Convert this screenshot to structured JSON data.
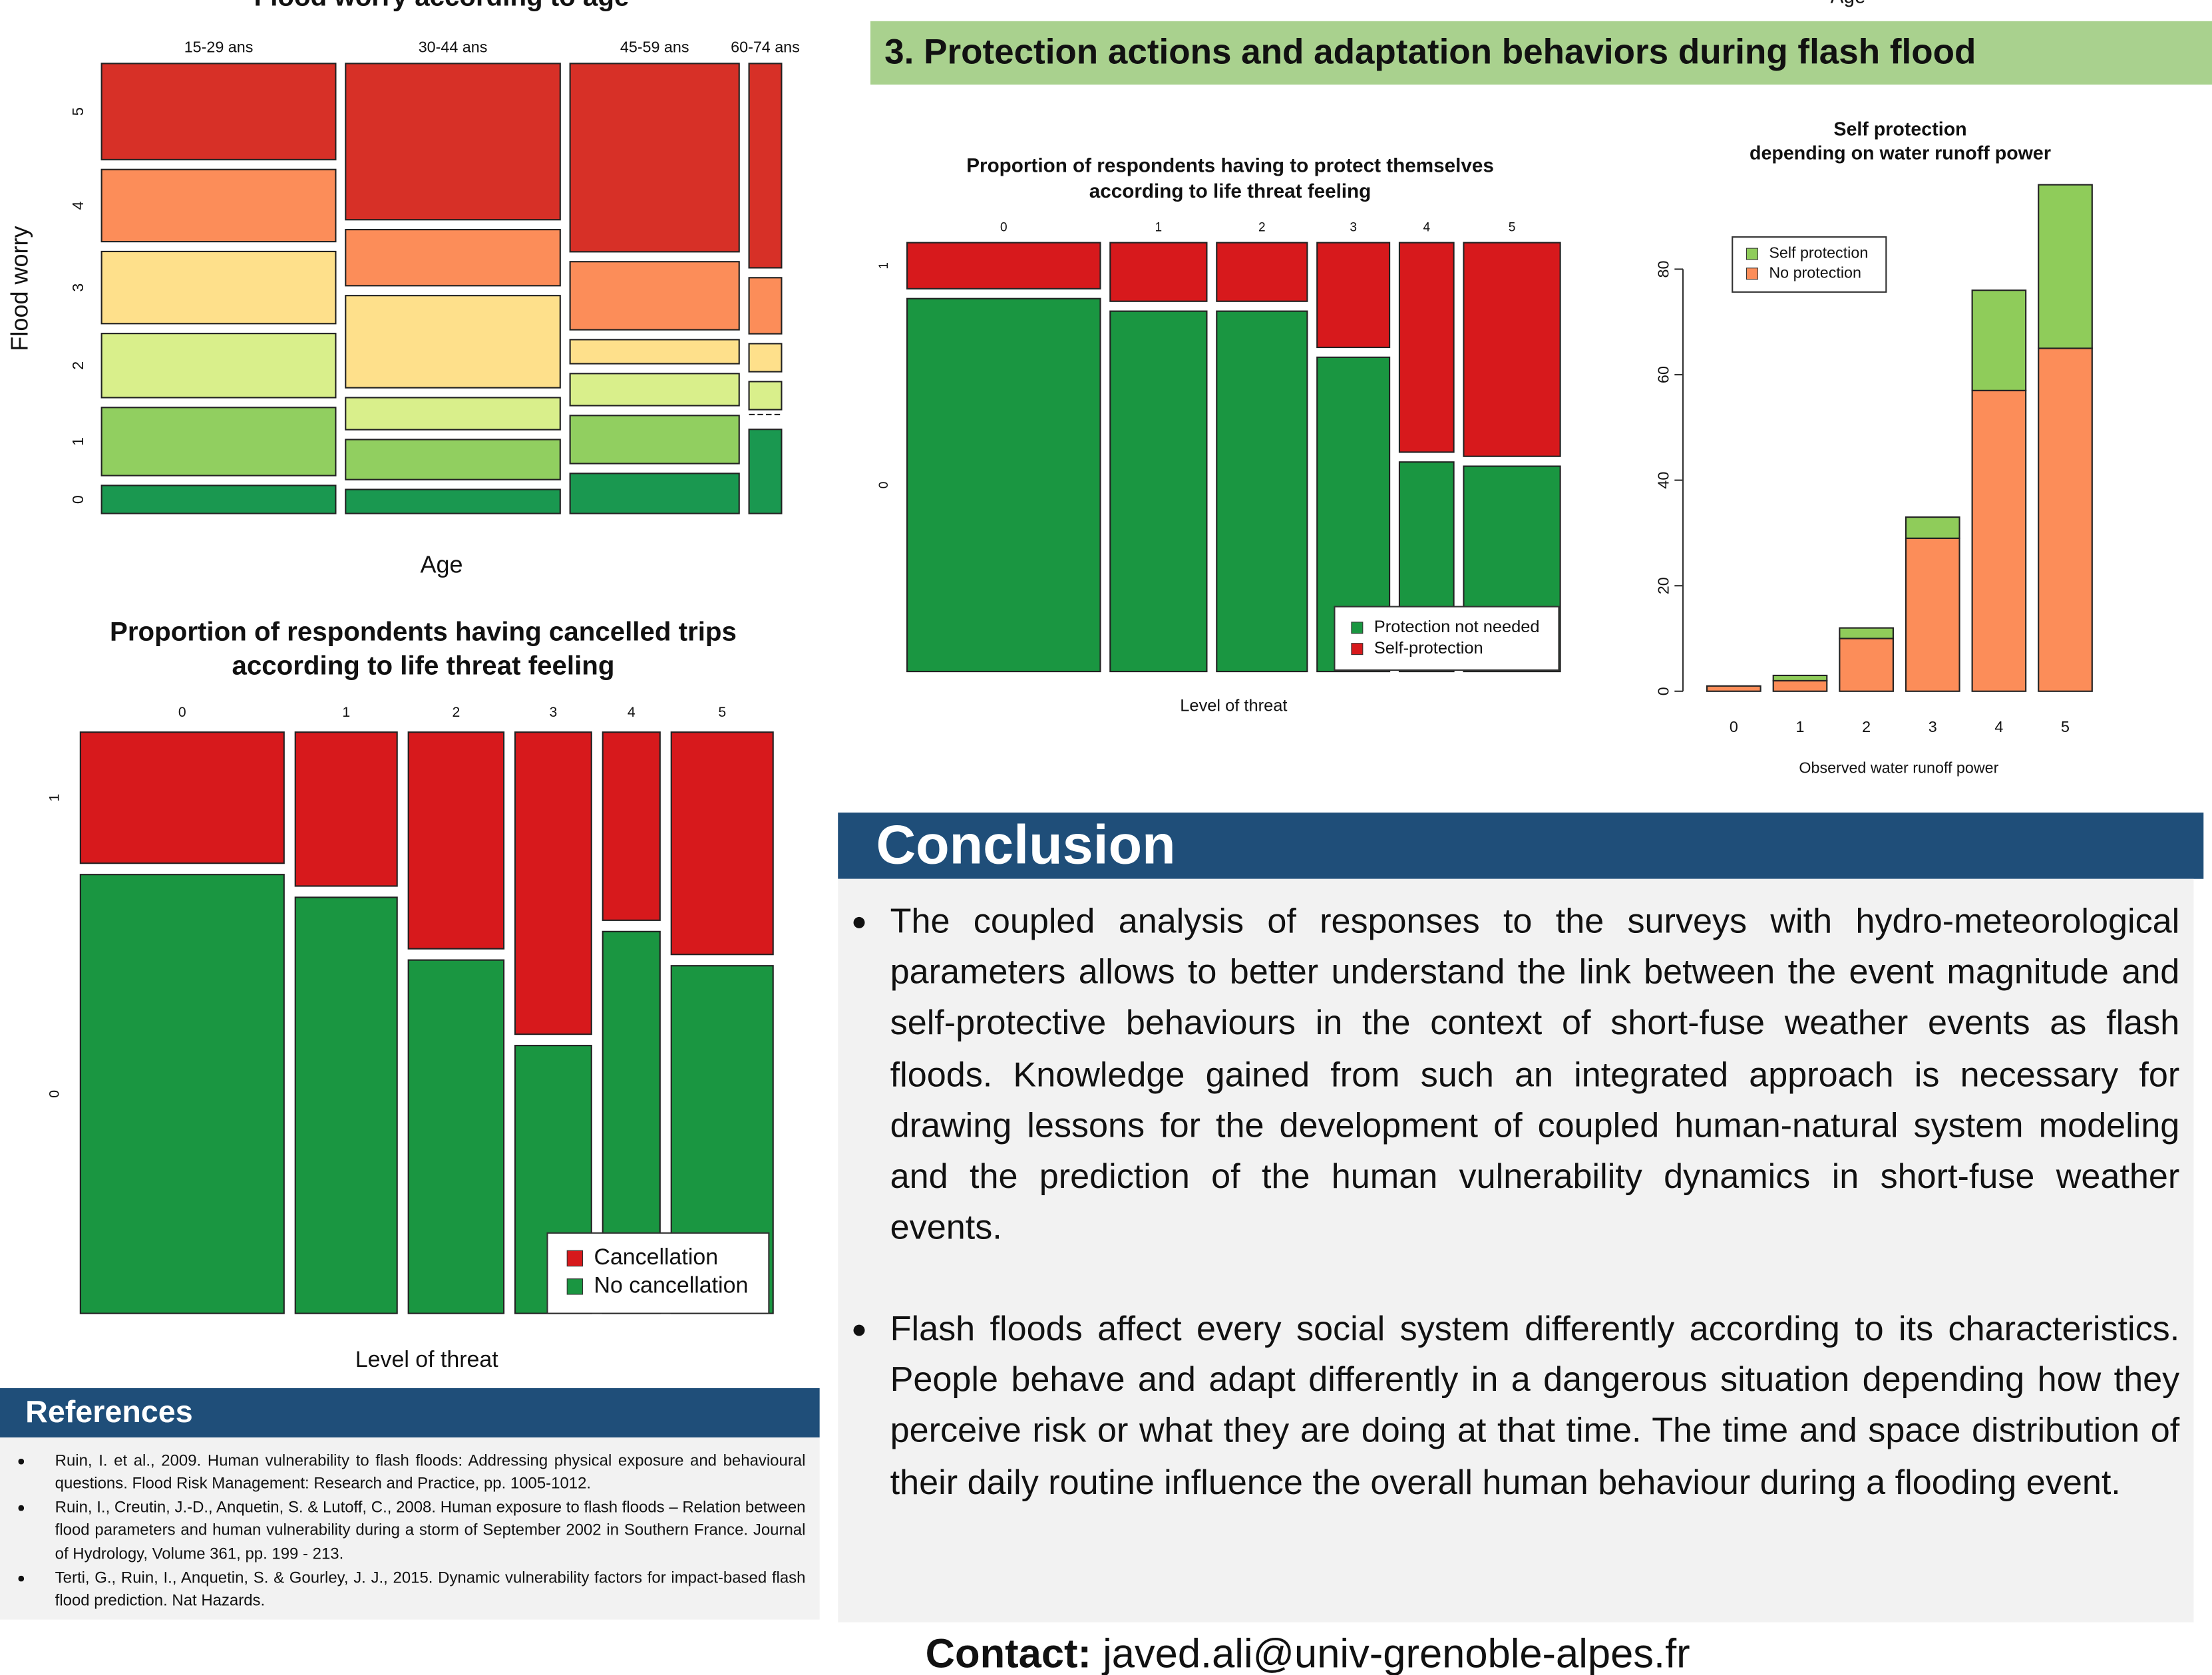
{
  "top_cut_label": "Age",
  "section_title": "3. Protection actions and adaptation behaviors during flash flood",
  "flood_worry_chart": {
    "type": "mosaic",
    "title": "Flood worry according to age",
    "x_label": "Age",
    "y_label": "Flood worry",
    "categories": [
      "15-29 ans",
      "30-44 ans",
      "45-59 ans",
      "60-74 ans"
    ],
    "widths": [
      0.36,
      0.33,
      0.26,
      0.05
    ],
    "stack": "bottom-up",
    "legend": false,
    "series": [
      {
        "name": "0",
        "color": "#1a9850",
        "values": [
          0.07,
          0.06,
          0.1,
          0.21
        ]
      },
      {
        "name": "1",
        "color": "#91cf60",
        "values": [
          0.17,
          0.1,
          0.12,
          0
        ]
      },
      {
        "name": "2",
        "color": "#d9ef8b",
        "values": [
          0.16,
          0.08,
          0.08,
          0.07
        ]
      },
      {
        "name": "3",
        "color": "#fee08b",
        "values": [
          0.18,
          0.23,
          0.06,
          0.07
        ]
      },
      {
        "name": "4",
        "color": "#fc8d59",
        "values": [
          0.18,
          0.14,
          0.17,
          0.14
        ]
      },
      {
        "name": "5",
        "color": "#d73027",
        "values": [
          0.24,
          0.39,
          0.47,
          0.51
        ]
      }
    ]
  },
  "cancel_chart": {
    "type": "mosaic",
    "title_lines": [
      "Proportion of respondents having cancelled trips",
      "according to life threat feeling"
    ],
    "x_label": "Level of threat",
    "categories": [
      "0",
      "1",
      "2",
      "3",
      "4",
      "5"
    ],
    "widths": [
      0.32,
      0.16,
      0.15,
      0.12,
      0.09,
      0.16
    ],
    "stack": "top-down",
    "legend": "bottom-right",
    "levels": [
      "1",
      "0"
    ],
    "series": [
      {
        "name": "Cancellation",
        "color": "#d7191c",
        "values": [
          0.23,
          0.27,
          0.38,
          0.53,
          0.33,
          0.39
        ]
      },
      {
        "name": "No cancellation",
        "color": "#1a9641",
        "values": [
          0.77,
          0.73,
          0.62,
          0.47,
          0.67,
          0.61
        ]
      }
    ]
  },
  "protection_chart": {
    "type": "mosaic",
    "title_lines": [
      "Proportion of respondents having to protect themselves",
      "according to life threat feeling"
    ],
    "x_label": "Level of threat",
    "categories": [
      "0",
      "1",
      "2",
      "3",
      "4",
      "5"
    ],
    "widths": [
      0.32,
      0.16,
      0.15,
      0.12,
      0.09,
      0.16
    ],
    "stack": "bottom-up",
    "legend": "bottom-right",
    "levels": [
      "0",
      "1"
    ],
    "series": [
      {
        "name": "Protection not needed",
        "color": "#1a9641",
        "values": [
          0.89,
          0.86,
          0.86,
          0.75,
          0.5,
          0.49
        ]
      },
      {
        "name": "Self-protection",
        "color": "#d7191c",
        "values": [
          0.11,
          0.14,
          0.14,
          0.25,
          0.5,
          0.51
        ]
      }
    ]
  },
  "runoff_chart": {
    "type": "bar",
    "stacked": true,
    "title_lines": [
      "Self protection",
      "depending on water runoff power"
    ],
    "x_label": "Observed water runoff power",
    "categories": [
      "0",
      "1",
      "2",
      "3",
      "4",
      "5"
    ],
    "ylim": [
      0,
      100
    ],
    "yticks": [
      0,
      20,
      40,
      60,
      80
    ],
    "grid": false,
    "legend": "top-left",
    "series": [
      {
        "name": "Self protection",
        "color": "#8fcc5a",
        "values": [
          0,
          1,
          2,
          4,
          19,
          31
        ]
      },
      {
        "name": "No protection",
        "color": "#fc8d59",
        "values": [
          1,
          2,
          10,
          29,
          57,
          65
        ]
      }
    ]
  },
  "conclusion": {
    "title": "Conclusion",
    "bullets": [
      "The coupled analysis of responses to the surveys with hydro-meteorological parameters allows to better understand the link between the event magnitude and self-protective behaviours in the context of short-fuse weather events as flash floods. Knowledge gained from such an integrated approach is necessary for drawing lessons for the development of coupled human-natural system modeling and the prediction of the human vulnerability dynamics in short-fuse weather events.",
      "Flash floods affect every social system differently according to its characteristics. People behave and adapt differently in a dangerous situation depending how they perceive risk or what they are doing at that time. The time and space distribution of their daily routine influence the overall human behaviour during a flooding event."
    ]
  },
  "references": {
    "title": "References",
    "items": [
      "Ruin, I. et al., 2009. Human vulnerability to flash floods: Addressing physical exposure and behavioural questions. Flood Risk Management: Research and Practice, pp. 1005-1012.",
      "Ruin, I., Creutin, J.-D., Anquetin, S. & Lutoff, C., 2008. Human exposure to flash floods – Relation between flood parameters and human vulnerability during a storm of September 2002 in Southern France. Journal of Hydrology, Volume 361, pp. 199 - 213.",
      "Terti, G., Ruin, I., Anquetin, S. & Gourley, J. J., 2015. Dynamic vulnerability factors for impact-based flash flood prediction. Nat Hazards."
    ]
  },
  "contact": {
    "label": "Contact:",
    "email": "javed.ali@univ-grenoble-alpes.fr"
  }
}
